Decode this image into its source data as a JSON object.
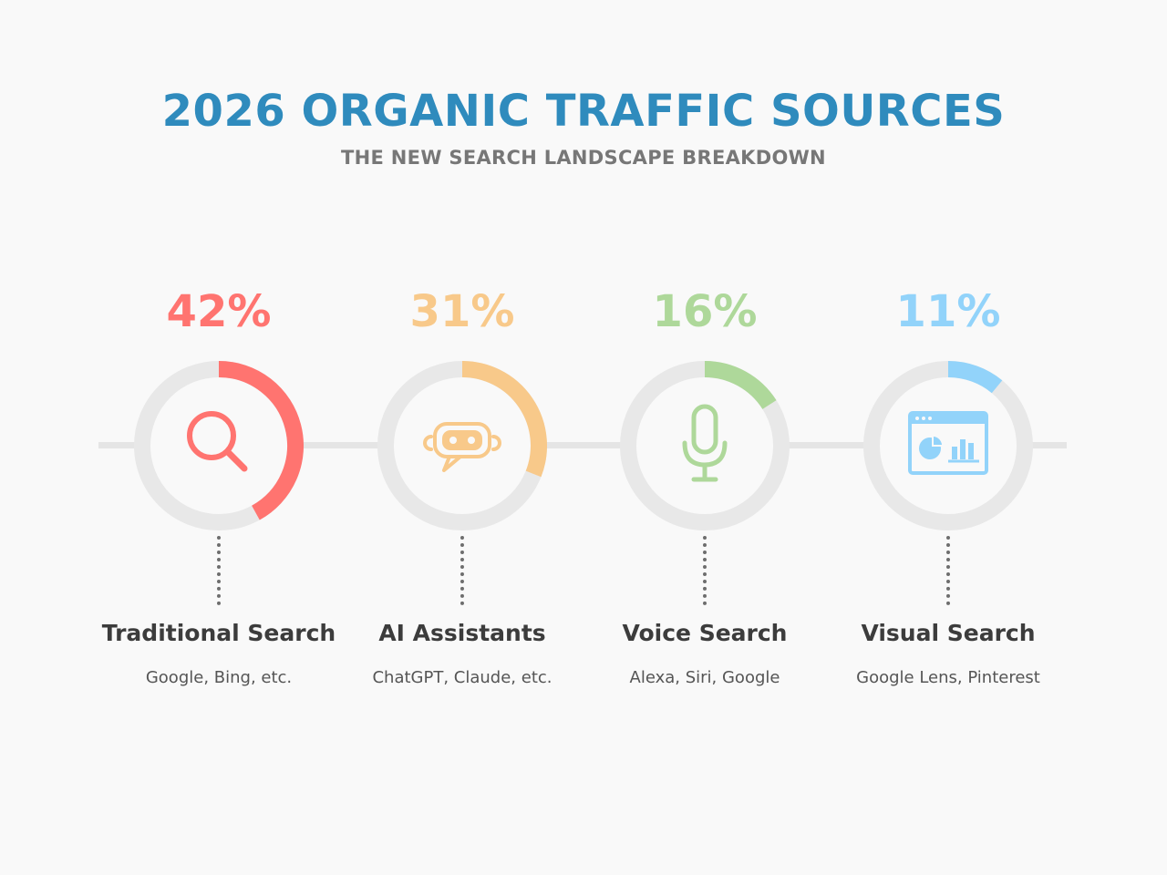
{
  "header": {
    "title": "2026 ORGANIC TRAFFIC SOURCES",
    "subtitle": "THE NEW SEARCH LANDSCAPE BREAKDOWN"
  },
  "colors": {
    "title": "#2f8bbd",
    "subtitle": "#777777",
    "track": "#e8e8e8",
    "connector": "#e5e5e5"
  },
  "chart_data": {
    "type": "pie",
    "title": "2026 ORGANIC TRAFFIC SOURCES",
    "subtitle": "THE NEW SEARCH LANDSCAPE BREAKDOWN",
    "categories": [
      "Traditional Search",
      "AI Assistants",
      "Voice Search",
      "Visual Search"
    ],
    "values": [
      42,
      31,
      16,
      11
    ],
    "unit": "%",
    "items": [
      {
        "percent": 42,
        "value_label": "42%",
        "label": "Traditional Search",
        "description": "Google, Bing, etc.",
        "color": "#ff7470",
        "icon": "magnifier-icon"
      },
      {
        "percent": 31,
        "value_label": "31%",
        "label": "AI Assistants",
        "description": "ChatGPT, Claude, etc.",
        "color": "#f8c98a",
        "icon": "robot-chat-icon"
      },
      {
        "percent": 16,
        "value_label": "16%",
        "label": "Voice Search",
        "description": "Alexa, Siri, Google",
        "color": "#aed89a",
        "icon": "microphone-icon"
      },
      {
        "percent": 11,
        "value_label": "11%",
        "label": "Visual Search",
        "description": "Google Lens, Pinterest",
        "color": "#92d3fa",
        "icon": "browser-chart-icon"
      }
    ]
  }
}
